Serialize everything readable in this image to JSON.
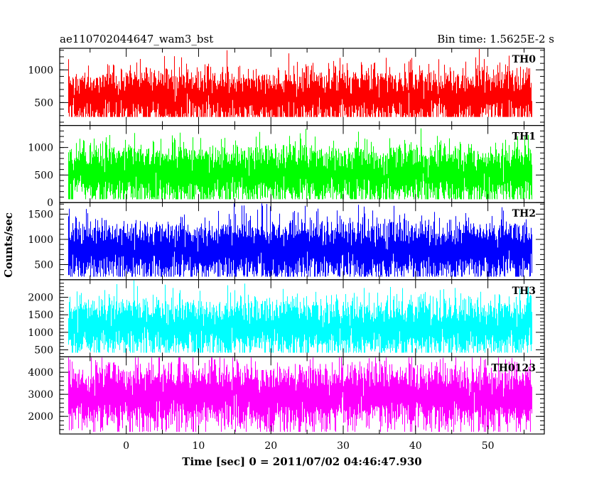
{
  "header": {
    "left": "ae110702044647_wam3_bst",
    "right": "Bin time: 1.5625E-2 s"
  },
  "chart_data": {
    "type": "line",
    "xlabel": "Time [sec] 0 = 2011/07/02 04:46:47.930",
    "ylabel": "Counts/sec",
    "xlim": [
      -9.2,
      57.8
    ],
    "x_ticks": [
      0,
      10,
      20,
      30,
      40,
      50
    ],
    "x_tick_labels": [
      "0",
      "10",
      "20",
      "30",
      "40",
      "50"
    ],
    "x_range": [
      -8,
      56
    ],
    "bin_time": 0.015625,
    "grid": false,
    "series": [
      {
        "name": "TH0",
        "color": "#ff0000",
        "ylim": [
          150,
          1330
        ],
        "y_ticks": [
          500,
          1000
        ],
        "y_tick_labels": [
          "500",
          "1000"
        ],
        "mean": 580,
        "sd": 210,
        "min": 280
      },
      {
        "name": "TH1",
        "color": "#00ff00",
        "ylim": [
          0,
          1400
        ],
        "y_ticks": [
          0,
          500,
          1000
        ],
        "y_tick_labels": [
          "0",
          "500",
          "1000"
        ],
        "mean": 520,
        "sd": 250,
        "min": 60
      },
      {
        "name": "TH2",
        "color": "#0000ff",
        "ylim": [
          200,
          1730
        ],
        "y_ticks": [
          500,
          1000,
          1500
        ],
        "y_tick_labels": [
          "500",
          "1000",
          "1500"
        ],
        "mean": 780,
        "sd": 280,
        "min": 260
      },
      {
        "name": "TH3",
        "color": "#00ffff",
        "ylim": [
          300,
          2500
        ],
        "y_ticks": [
          500,
          1000,
          1500,
          2000
        ],
        "y_tick_labels": [
          "500",
          "1000",
          "1500",
          "2000"
        ],
        "mean": 1150,
        "sd": 380,
        "min": 420
      },
      {
        "name": "TH0123",
        "color": "#ff00ff",
        "ylim": [
          1200,
          4700
        ],
        "y_ticks": [
          2000,
          3000,
          4000
        ],
        "y_tick_labels": [
          "2000",
          "3000",
          "4000"
        ],
        "mean": 2900,
        "sd": 700,
        "min": 1300
      }
    ]
  }
}
